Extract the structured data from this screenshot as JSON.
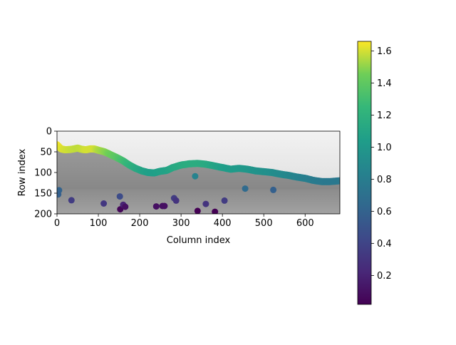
{
  "chart_data": {
    "type": "scatter",
    "xlabel": "Column index",
    "ylabel": "Row index",
    "xlim": [
      0,
      684
    ],
    "ylim": [
      200,
      0
    ],
    "x_ticks": [
      0,
      100,
      200,
      300,
      400,
      500,
      600
    ],
    "y_ticks": [
      0,
      50,
      100,
      150,
      200
    ],
    "background": "grayscale landscape photo: sky above a mountain ridge, town below",
    "horizon_line": {
      "description": "densely sampled ridge line, colored by value",
      "points": [
        {
          "x": 0,
          "y": 33,
          "v": 1.65
        },
        {
          "x": 10,
          "y": 43,
          "v": 1.62
        },
        {
          "x": 20,
          "y": 45,
          "v": 1.6
        },
        {
          "x": 35,
          "y": 44,
          "v": 1.58
        },
        {
          "x": 50,
          "y": 41,
          "v": 1.57
        },
        {
          "x": 60,
          "y": 44,
          "v": 1.58
        },
        {
          "x": 70,
          "y": 45,
          "v": 1.6
        },
        {
          "x": 80,
          "y": 43,
          "v": 1.6
        },
        {
          "x": 90,
          "y": 43,
          "v": 1.6
        },
        {
          "x": 100,
          "y": 46,
          "v": 1.55
        },
        {
          "x": 115,
          "y": 50,
          "v": 1.5
        },
        {
          "x": 130,
          "y": 57,
          "v": 1.44
        },
        {
          "x": 145,
          "y": 64,
          "v": 1.38
        },
        {
          "x": 160,
          "y": 72,
          "v": 1.3
        },
        {
          "x": 175,
          "y": 82,
          "v": 1.22
        },
        {
          "x": 190,
          "y": 90,
          "v": 1.15
        },
        {
          "x": 205,
          "y": 96,
          "v": 1.1
        },
        {
          "x": 220,
          "y": 100,
          "v": 1.06
        },
        {
          "x": 235,
          "y": 101,
          "v": 1.05
        },
        {
          "x": 250,
          "y": 97,
          "v": 1.07
        },
        {
          "x": 265,
          "y": 95,
          "v": 1.08
        },
        {
          "x": 280,
          "y": 88,
          "v": 1.12
        },
        {
          "x": 300,
          "y": 82,
          "v": 1.15
        },
        {
          "x": 320,
          "y": 79,
          "v": 1.16
        },
        {
          "x": 340,
          "y": 78,
          "v": 1.16
        },
        {
          "x": 360,
          "y": 80,
          "v": 1.14
        },
        {
          "x": 380,
          "y": 84,
          "v": 1.1
        },
        {
          "x": 400,
          "y": 88,
          "v": 1.06
        },
        {
          "x": 420,
          "y": 92,
          "v": 1.03
        },
        {
          "x": 440,
          "y": 90,
          "v": 1.02
        },
        {
          "x": 460,
          "y": 92,
          "v": 1.0
        },
        {
          "x": 480,
          "y": 96,
          "v": 0.97
        },
        {
          "x": 500,
          "y": 98,
          "v": 0.95
        },
        {
          "x": 520,
          "y": 100,
          "v": 0.93
        },
        {
          "x": 540,
          "y": 104,
          "v": 0.9
        },
        {
          "x": 560,
          "y": 107,
          "v": 0.88
        },
        {
          "x": 580,
          "y": 111,
          "v": 0.85
        },
        {
          "x": 600,
          "y": 114,
          "v": 0.82
        },
        {
          "x": 620,
          "y": 119,
          "v": 0.79
        },
        {
          "x": 640,
          "y": 122,
          "v": 0.77
        },
        {
          "x": 660,
          "y": 122,
          "v": 0.76
        },
        {
          "x": 684,
          "y": 120,
          "v": 0.76
        }
      ]
    },
    "points": [
      {
        "x": 5,
        "y": 143,
        "v": 0.6
      },
      {
        "x": 3,
        "y": 153,
        "v": 0.58
      },
      {
        "x": 35,
        "y": 167,
        "v": 0.35
      },
      {
        "x": 113,
        "y": 175,
        "v": 0.32
      },
      {
        "x": 152,
        "y": 158,
        "v": 0.45
      },
      {
        "x": 153,
        "y": 189,
        "v": 0.05
      },
      {
        "x": 160,
        "y": 178,
        "v": 0.2
      },
      {
        "x": 165,
        "y": 183,
        "v": 0.1
      },
      {
        "x": 240,
        "y": 182,
        "v": 0.1
      },
      {
        "x": 255,
        "y": 181,
        "v": 0.1
      },
      {
        "x": 260,
        "y": 181,
        "v": 0.1
      },
      {
        "x": 283,
        "y": 162,
        "v": 0.35
      },
      {
        "x": 288,
        "y": 168,
        "v": 0.3
      },
      {
        "x": 334,
        "y": 109,
        "v": 0.85
      },
      {
        "x": 340,
        "y": 193,
        "v": 0.02
      },
      {
        "x": 360,
        "y": 176,
        "v": 0.3
      },
      {
        "x": 382,
        "y": 195,
        "v": 0.02
      },
      {
        "x": 405,
        "y": 168,
        "v": 0.35
      },
      {
        "x": 455,
        "y": 139,
        "v": 0.66
      },
      {
        "x": 523,
        "y": 142,
        "v": 0.58
      }
    ],
    "colorbar": {
      "colormap": "viridis",
      "range": [
        0.02,
        1.66
      ],
      "ticks": [
        0.2,
        0.4,
        0.6,
        0.8,
        1.0,
        1.2,
        1.4,
        1.6
      ],
      "tick_labels": [
        "0.2",
        "0.4",
        "0.6",
        "0.8",
        "1.0",
        "1.2",
        "1.4",
        "1.6"
      ]
    }
  }
}
